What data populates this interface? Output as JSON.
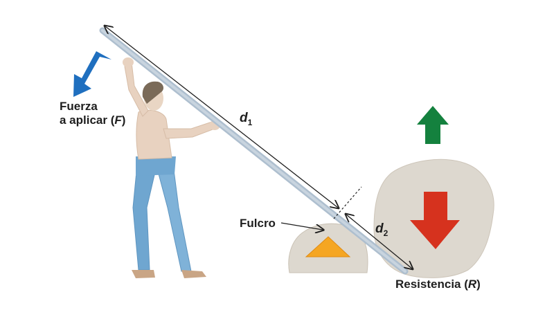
{
  "labels": {
    "force_line1": "Fuerza",
    "force_line2_prefix": "a aplicar (",
    "force_symbol": "F",
    "force_suffix": ")",
    "fulcrum": "Fulcro",
    "resistance_prefix": "Resistencia (",
    "resistance_symbol": "R",
    "resistance_suffix": ")",
    "d1_var": "d",
    "d1_sub": "1",
    "d2_var": "d",
    "d2_sub": "2"
  },
  "colors": {
    "force_arrow": "#1f6fbf",
    "up_arrow": "#14813e",
    "down_arrow": "#d6321e",
    "fulcrum_triangle": "#f5a623",
    "lever": "#aebfcf",
    "stone": "#dcd6cc",
    "pants": "#6fa6d0"
  },
  "icons": {
    "force": "arrow-down-left-icon",
    "up": "arrow-up-icon",
    "down": "arrow-down-icon"
  }
}
